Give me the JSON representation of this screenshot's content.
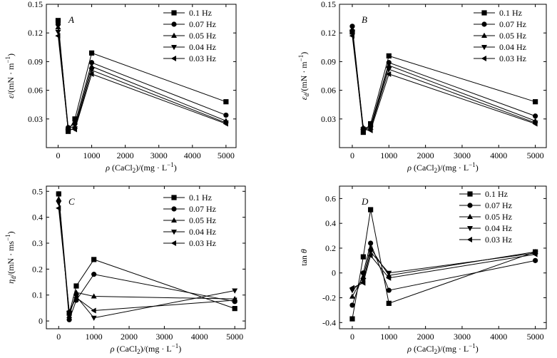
{
  "chart_data": [
    {
      "type": "line",
      "panel": "A",
      "ylabel_main": "ε",
      "ylabel_sub": "",
      "ylabel_unit": "/(mN · m",
      "xlabel_main": "ρ",
      "xlabel_rest": " (CaCl",
      "xlabel_sub": "2",
      "xlabel_unit": ")/(mg · L",
      "x": [
        0,
        300,
        500,
        1000,
        5000
      ],
      "xlim": [
        -350,
        5300
      ],
      "ylim": [
        0,
        0.15
      ],
      "xticks": [
        "0",
        "1000",
        "2000",
        "3000",
        "4000",
        "5000"
      ],
      "xtick_values": [
        0,
        1000,
        2000,
        3000,
        4000,
        5000
      ],
      "yticks": [
        "0.03",
        "0.06",
        "0.09",
        "0.12",
        "0.15"
      ],
      "ytick_values": [
        0.03,
        0.06,
        0.09,
        0.12,
        0.15
      ],
      "legend_position": "top-right",
      "series": [
        {
          "name": "0.1 Hz",
          "marker": "square",
          "values": [
            0.133,
            0.017,
            0.03,
            0.099,
            0.048
          ]
        },
        {
          "name": "0.07 Hz",
          "marker": "circle",
          "values": [
            0.129,
            0.021,
            0.025,
            0.089,
            0.034
          ]
        },
        {
          "name": "0.05 Hz",
          "marker": "triangle-up",
          "values": [
            0.126,
            0.02,
            0.022,
            0.085,
            0.028
          ]
        },
        {
          "name": "0.04 Hz",
          "marker": "triangle-down",
          "values": [
            0.121,
            0.018,
            0.02,
            0.081,
            0.026
          ]
        },
        {
          "name": "0.03 Hz",
          "marker": "triangle-left",
          "values": [
            0.117,
            0.019,
            0.019,
            0.077,
            0.025
          ]
        }
      ]
    },
    {
      "type": "line",
      "panel": "B",
      "ylabel_main": "ε",
      "ylabel_sub": "d",
      "ylabel_unit": "/(mN · m",
      "xlabel_main": "ρ",
      "xlabel_rest": " (CaCl",
      "xlabel_sub": "2",
      "xlabel_unit": ")/(mg · L",
      "x": [
        0,
        300,
        500,
        1000,
        5000
      ],
      "xlim": [
        -350,
        5300
      ],
      "ylim": [
        0,
        0.15
      ],
      "xticks": [
        "0",
        "1000",
        "2000",
        "3000",
        "4000",
        "5000"
      ],
      "xtick_values": [
        0,
        1000,
        2000,
        3000,
        4000,
        5000
      ],
      "yticks": [
        "0.03",
        "0.06",
        "0.09",
        "0.12",
        "0.15"
      ],
      "ytick_values": [
        0.03,
        0.06,
        0.09,
        0.12,
        0.15
      ],
      "legend_position": "top-right",
      "series": [
        {
          "name": "0.1 Hz",
          "marker": "square",
          "values": [
            0.121,
            0.016,
            0.025,
            0.096,
            0.048
          ]
        },
        {
          "name": "0.07 Hz",
          "marker": "circle",
          "values": [
            0.127,
            0.02,
            0.022,
            0.089,
            0.033
          ]
        },
        {
          "name": "0.05 Hz",
          "marker": "triangle-up",
          "values": [
            0.124,
            0.021,
            0.021,
            0.086,
            0.028
          ]
        },
        {
          "name": "0.04 Hz",
          "marker": "triangle-down",
          "values": [
            0.121,
            0.019,
            0.02,
            0.082,
            0.026
          ]
        },
        {
          "name": "0.03 Hz",
          "marker": "triangle-left",
          "values": [
            0.117,
            0.019,
            0.018,
            0.077,
            0.025
          ]
        }
      ]
    },
    {
      "type": "line",
      "panel": "C",
      "ylabel_main": "η",
      "ylabel_sub": "d",
      "ylabel_unit": "/(mN · ms",
      "xlabel_main": "ρ",
      "xlabel_rest": " (CaCl",
      "xlabel_sub": "2",
      "xlabel_unit": ")/(mg · L",
      "x": [
        0,
        300,
        500,
        1000,
        5000
      ],
      "xlim": [
        -350,
        5300
      ],
      "ylim": [
        -0.03,
        0.52
      ],
      "xticks": [
        "0",
        "1000",
        "2000",
        "3000",
        "4000",
        "5000"
      ],
      "xtick_values": [
        0,
        1000,
        2000,
        3000,
        4000,
        5000
      ],
      "yticks": [
        "0",
        "0.1",
        "0.2",
        "0.3",
        "0.4",
        "0.5"
      ],
      "ytick_values": [
        0,
        0.1,
        0.2,
        0.3,
        0.4,
        0.5
      ],
      "legend_position": "top-right",
      "series": [
        {
          "name": "0.1 Hz",
          "marker": "square",
          "values": [
            0.49,
            0.03,
            0.135,
            0.237,
            0.048
          ]
        },
        {
          "name": "0.07 Hz",
          "marker": "circle",
          "values": [
            0.49,
            0.005,
            0.08,
            0.18,
            0.075
          ]
        },
        {
          "name": "0.05 Hz",
          "marker": "triangle-up",
          "values": [
            0.47,
            0.02,
            0.11,
            0.095,
            0.085
          ]
        },
        {
          "name": "0.04 Hz",
          "marker": "triangle-down",
          "values": [
            0.455,
            0.03,
            0.095,
            0.012,
            0.117
          ]
        },
        {
          "name": "0.03 Hz",
          "marker": "triangle-left",
          "values": [
            0.435,
            0.038,
            0.09,
            0.04,
            0.08
          ]
        }
      ]
    },
    {
      "type": "line",
      "panel": "D",
      "ylabel_main": "tan ",
      "ylabel_italic": "θ",
      "xlabel_main": "ρ",
      "xlabel_rest": " (CaCl",
      "xlabel_sub": "2",
      "xlabel_unit": ")/(mg · L",
      "x": [
        0,
        300,
        500,
        1000,
        5000
      ],
      "xlim": [
        -350,
        5300
      ],
      "ylim": [
        -0.45,
        0.7
      ],
      "xticks": [
        "0",
        "1000",
        "2000",
        "3000",
        "4000",
        "5000"
      ],
      "xtick_values": [
        0,
        1000,
        2000,
        3000,
        4000,
        5000
      ],
      "yticks": [
        "-0.4",
        "-0.2",
        "0",
        "0.2",
        "0.4",
        "0.6"
      ],
      "ytick_values": [
        -0.4,
        -0.2,
        0,
        0.2,
        0.4,
        0.6
      ],
      "legend_position": "top-right",
      "series": [
        {
          "name": "0.1 Hz",
          "marker": "square",
          "values": [
            -0.37,
            0.13,
            0.51,
            -0.245,
            0.17
          ]
        },
        {
          "name": "0.07 Hz",
          "marker": "circle",
          "values": [
            -0.26,
            0.0,
            0.24,
            -0.14,
            0.1
          ]
        },
        {
          "name": "0.05 Hz",
          "marker": "triangle-up",
          "values": [
            -0.19,
            -0.03,
            0.2,
            -0.02,
            0.17
          ]
        },
        {
          "name": "0.04 Hz",
          "marker": "triangle-down",
          "values": [
            -0.14,
            -0.06,
            0.17,
            0.0,
            0.16
          ]
        },
        {
          "name": "0.03 Hz",
          "marker": "triangle-left",
          "values": [
            -0.12,
            -0.08,
            0.14,
            -0.04,
            0.15
          ]
        }
      ]
    }
  ]
}
